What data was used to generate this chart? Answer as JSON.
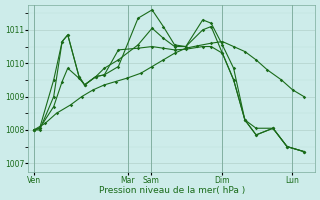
{
  "xlabel": "Pression niveau de la mer( hPa )",
  "background_color": "#cdecea",
  "line_color": "#1a6b1a",
  "ylim": [
    1006.75,
    1011.75
  ],
  "yticks": [
    1007,
    1008,
    1009,
    1010,
    1011
  ],
  "xtick_labels": [
    "Ven",
    "Mar",
    "Sam",
    "Dim",
    "Lun"
  ],
  "xtick_positions": [
    0.0,
    0.333,
    0.417,
    0.667,
    0.917
  ],
  "series": [
    {
      "x": [
        0.0,
        0.02,
        0.07,
        0.1,
        0.12,
        0.16,
        0.18,
        0.22,
        0.25,
        0.3,
        0.37,
        0.42,
        0.46,
        0.5,
        0.54,
        0.6,
        0.63,
        0.67,
        0.71,
        0.75,
        0.79,
        0.85,
        0.9,
        0.96
      ],
      "y": [
        1008.0,
        1008.05,
        1009.5,
        1010.65,
        1010.85,
        1009.6,
        1009.35,
        1009.6,
        1009.65,
        1009.9,
        1011.35,
        1011.6,
        1011.1,
        1010.55,
        1010.5,
        1011.3,
        1011.2,
        1010.55,
        1009.85,
        1008.3,
        1007.85,
        1008.05,
        1007.5,
        1007.35
      ]
    },
    {
      "x": [
        0.0,
        0.04,
        0.08,
        0.13,
        0.17,
        0.21,
        0.25,
        0.29,
        0.33,
        0.38,
        0.42,
        0.46,
        0.5,
        0.54,
        0.58,
        0.63,
        0.67,
        0.71,
        0.75,
        0.79,
        0.83,
        0.88,
        0.92,
        0.96
      ],
      "y": [
        1008.0,
        1008.2,
        1008.5,
        1008.75,
        1009.0,
        1009.2,
        1009.35,
        1009.45,
        1009.55,
        1009.7,
        1009.9,
        1010.1,
        1010.3,
        1010.45,
        1010.52,
        1010.6,
        1010.65,
        1010.5,
        1010.35,
        1010.1,
        1009.8,
        1009.5,
        1009.2,
        1009.0
      ]
    },
    {
      "x": [
        0.0,
        0.02,
        0.07,
        0.1,
        0.12,
        0.16,
        0.18,
        0.22,
        0.25,
        0.3,
        0.37,
        0.42,
        0.46,
        0.5,
        0.54,
        0.6,
        0.63,
        0.67,
        0.71,
        0.75,
        0.79,
        0.85,
        0.9,
        0.96
      ],
      "y": [
        1008.0,
        1008.0,
        1009.0,
        1010.65,
        1010.85,
        1009.6,
        1009.35,
        1009.6,
        1009.65,
        1010.4,
        1010.45,
        1010.5,
        1010.45,
        1010.4,
        1010.42,
        1010.5,
        1010.5,
        1010.3,
        1009.5,
        1008.3,
        1008.05,
        1008.05,
        1007.5,
        1007.35
      ]
    },
    {
      "x": [
        0.0,
        0.02,
        0.07,
        0.1,
        0.12,
        0.16,
        0.18,
        0.22,
        0.25,
        0.3,
        0.37,
        0.42,
        0.46,
        0.5,
        0.54,
        0.6,
        0.63,
        0.67,
        0.71,
        0.75,
        0.79,
        0.85,
        0.9,
        0.96
      ],
      "y": [
        1008.0,
        1008.05,
        1008.7,
        1009.45,
        1009.85,
        1009.55,
        1009.35,
        1009.6,
        1009.85,
        1010.1,
        1010.55,
        1011.05,
        1010.75,
        1010.5,
        1010.5,
        1011.0,
        1011.1,
        1010.3,
        1009.5,
        1008.3,
        1007.85,
        1008.05,
        1007.5,
        1007.35
      ]
    }
  ]
}
